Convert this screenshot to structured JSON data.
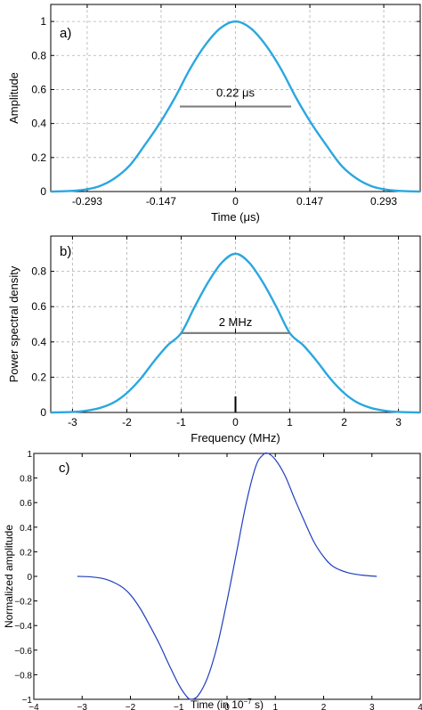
{
  "chart_data": [
    {
      "id": "a",
      "type": "line",
      "panel_label": "a)",
      "title": "",
      "xlabel": "Time (μs)",
      "ylabel": "Amplitude",
      "xlim": [
        -0.365,
        0.365
      ],
      "ylim": [
        0,
        1.1
      ],
      "x_ticks": [
        -0.293,
        -0.147,
        0,
        0.147,
        0.293
      ],
      "x_tick_labels": [
        "-0.293",
        "-0.147",
        "0",
        "0.147",
        "0.293"
      ],
      "y_ticks": [
        0,
        0.2,
        0.4,
        0.6,
        0.8,
        1
      ],
      "y_tick_labels": [
        "0",
        "0.2",
        "0.4",
        "0.6",
        "0.8",
        "1"
      ],
      "grid": true,
      "line_color": "#2aa7e0",
      "series": [
        {
          "x": [
            -0.365,
            -0.33,
            -0.3,
            -0.27,
            -0.24,
            -0.21,
            -0.18,
            -0.15,
            -0.12,
            -0.09,
            -0.06,
            -0.03,
            0,
            0.03,
            0.06,
            0.09,
            0.12,
            0.15,
            0.18,
            0.21,
            0.24,
            0.27,
            0.3,
            0.33,
            0.365
          ],
          "values": [
            0.0,
            0.003,
            0.01,
            0.03,
            0.075,
            0.15,
            0.27,
            0.4,
            0.55,
            0.72,
            0.86,
            0.96,
            1.0,
            0.96,
            0.86,
            0.72,
            0.55,
            0.4,
            0.27,
            0.15,
            0.075,
            0.03,
            0.01,
            0.003,
            0.0
          ]
        }
      ],
      "annotation": {
        "text": "0.22 μs",
        "x_start": -0.11,
        "x_end": 0.11,
        "y": 0.5,
        "color": "#808080"
      }
    },
    {
      "id": "b",
      "type": "line",
      "panel_label": "b)",
      "title": "",
      "xlabel": "Frequency (MHz)",
      "ylabel": "Power spectral density",
      "xlim": [
        -3.4,
        3.4
      ],
      "ylim": [
        0,
        1
      ],
      "x_ticks": [
        -3,
        -2,
        -1,
        0,
        1,
        2,
        3
      ],
      "x_tick_labels": [
        "-3",
        "-2",
        "-1",
        "0",
        "1",
        "2",
        "3"
      ],
      "y_ticks": [
        0,
        0.2,
        0.4,
        0.6,
        0.8
      ],
      "y_tick_labels": [
        "0",
        "0.2",
        "0.4",
        "0.6",
        "0.8"
      ],
      "grid": true,
      "line_color": "#2aa7e0",
      "series": [
        {
          "x": [
            -3.4,
            -3.0,
            -2.75,
            -2.5,
            -2.25,
            -2.0,
            -1.75,
            -1.5,
            -1.25,
            -1.0,
            -0.75,
            -0.5,
            -0.25,
            0,
            0.25,
            0.5,
            0.75,
            1.0,
            1.25,
            1.5,
            1.75,
            2.0,
            2.25,
            2.5,
            2.75,
            3.0,
            3.4
          ],
          "values": [
            0.0,
            0.003,
            0.01,
            0.025,
            0.055,
            0.11,
            0.19,
            0.29,
            0.38,
            0.45,
            0.6,
            0.74,
            0.85,
            0.9,
            0.85,
            0.74,
            0.6,
            0.45,
            0.38,
            0.29,
            0.19,
            0.11,
            0.055,
            0.025,
            0.01,
            0.003,
            0.0
          ]
        }
      ],
      "annotation": {
        "text": "2 MHz",
        "x_start": -1.0,
        "x_end": 1.0,
        "y": 0.45,
        "color": "#808080"
      }
    },
    {
      "id": "c",
      "type": "line",
      "panel_label": "c)",
      "title": "",
      "xlabel_prefix": "Time (in 10",
      "xlabel_sup": "−7",
      "xlabel_suffix": " s)",
      "ylabel": "Normalized amplitude",
      "xlim": [
        -4,
        4
      ],
      "ylim": [
        -1,
        1
      ],
      "x_ticks": [
        -4,
        -3,
        -2,
        -1,
        0,
        1,
        2,
        3,
        4
      ],
      "x_tick_labels": [
        "−4",
        "−3",
        "−2",
        "−1",
        "0",
        "1",
        "2",
        "3",
        "4"
      ],
      "y_ticks": [
        -1,
        -0.8,
        -0.6,
        -0.4,
        -0.2,
        0,
        0.2,
        0.4,
        0.6,
        0.8,
        1
      ],
      "y_tick_labels": [
        "−1",
        "−0.8",
        "−0.6",
        "−0.4",
        "−0.2",
        "0",
        "0.2",
        "0.4",
        "0.6",
        "0.8",
        "1"
      ],
      "grid": false,
      "line_color": "#1f3fbf",
      "series": [
        {
          "x": [
            -3.1,
            -2.8,
            -2.5,
            -2.2,
            -2.0,
            -1.8,
            -1.6,
            -1.4,
            -1.2,
            -1.0,
            -0.85,
            -0.75,
            -0.6,
            -0.4,
            -0.2,
            0,
            0.2,
            0.4,
            0.6,
            0.75,
            0.85,
            1.0,
            1.2,
            1.4,
            1.6,
            1.8,
            2.0,
            2.2,
            2.5,
            2.8,
            3.1
          ],
          "values": [
            0.0,
            -0.005,
            -0.025,
            -0.08,
            -0.15,
            -0.26,
            -0.4,
            -0.55,
            -0.72,
            -0.88,
            -0.97,
            -1.0,
            -0.97,
            -0.82,
            -0.56,
            -0.2,
            0.2,
            0.6,
            0.9,
            0.99,
            1.0,
            0.95,
            0.82,
            0.63,
            0.45,
            0.28,
            0.16,
            0.08,
            0.03,
            0.01,
            0.0
          ]
        }
      ]
    }
  ]
}
